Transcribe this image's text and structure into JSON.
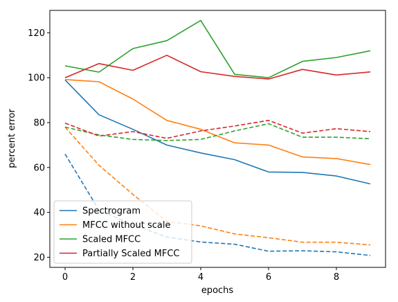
{
  "chart_data": {
    "type": "line",
    "title": "",
    "xlabel": "epochs",
    "ylabel": "percent error",
    "xlim": [
      -0.45,
      9.45
    ],
    "ylim": [
      15.5,
      130
    ],
    "xticks": [
      0,
      2,
      4,
      6,
      8
    ],
    "yticks": [
      20,
      40,
      60,
      80,
      100,
      120
    ],
    "grid": false,
    "legend_position": "lower-left",
    "x": [
      0,
      1,
      2,
      3,
      4,
      5,
      6,
      7,
      8,
      9
    ],
    "series": [
      {
        "name": "Spectrogram",
        "color": "#1f77b4",
        "style": "solid",
        "values": [
          99.0,
          83.5,
          77.0,
          70.0,
          66.5,
          63.5,
          58.0,
          57.8,
          56.2,
          52.7
        ]
      },
      {
        "name": "",
        "color": "#1f77b4",
        "style": "dashed",
        "values": [
          66.0,
          41.0,
          34.5,
          29.0,
          26.8,
          25.8,
          22.7,
          22.9,
          22.4,
          20.8
        ]
      },
      {
        "name": "MFCC without scale",
        "color": "#ff7f0e",
        "style": "solid",
        "values": [
          99.2,
          98.2,
          90.5,
          81.0,
          77.0,
          71.0,
          70.0,
          64.7,
          64.0,
          61.3
        ]
      },
      {
        "name": "",
        "color": "#ff7f0e",
        "style": "dashed",
        "values": [
          78.0,
          61.0,
          48.0,
          36.0,
          34.0,
          30.4,
          28.7,
          26.7,
          26.7,
          25.5
        ]
      },
      {
        "name": "Scaled MFCC",
        "color": "#2ca02c",
        "style": "solid",
        "values": [
          105.3,
          102.5,
          113.0,
          116.5,
          125.5,
          101.5,
          100.0,
          107.3,
          109.0,
          112.0
        ]
      },
      {
        "name": "",
        "color": "#2ca02c",
        "style": "dashed",
        "values": [
          78.0,
          74.5,
          72.5,
          72.0,
          72.5,
          76.3,
          79.5,
          73.5,
          73.5,
          72.8
        ]
      },
      {
        "name": "Partially Scaled MFCC",
        "color": "#d62728",
        "style": "solid",
        "values": [
          100.0,
          106.3,
          103.3,
          110.0,
          102.7,
          100.6,
          99.4,
          103.7,
          101.2,
          102.6
        ]
      },
      {
        "name": "",
        "color": "#d62728",
        "style": "dashed",
        "values": [
          79.8,
          74.0,
          76.0,
          73.0,
          76.3,
          78.5,
          81.0,
          75.3,
          77.3,
          76.0
        ]
      }
    ]
  }
}
